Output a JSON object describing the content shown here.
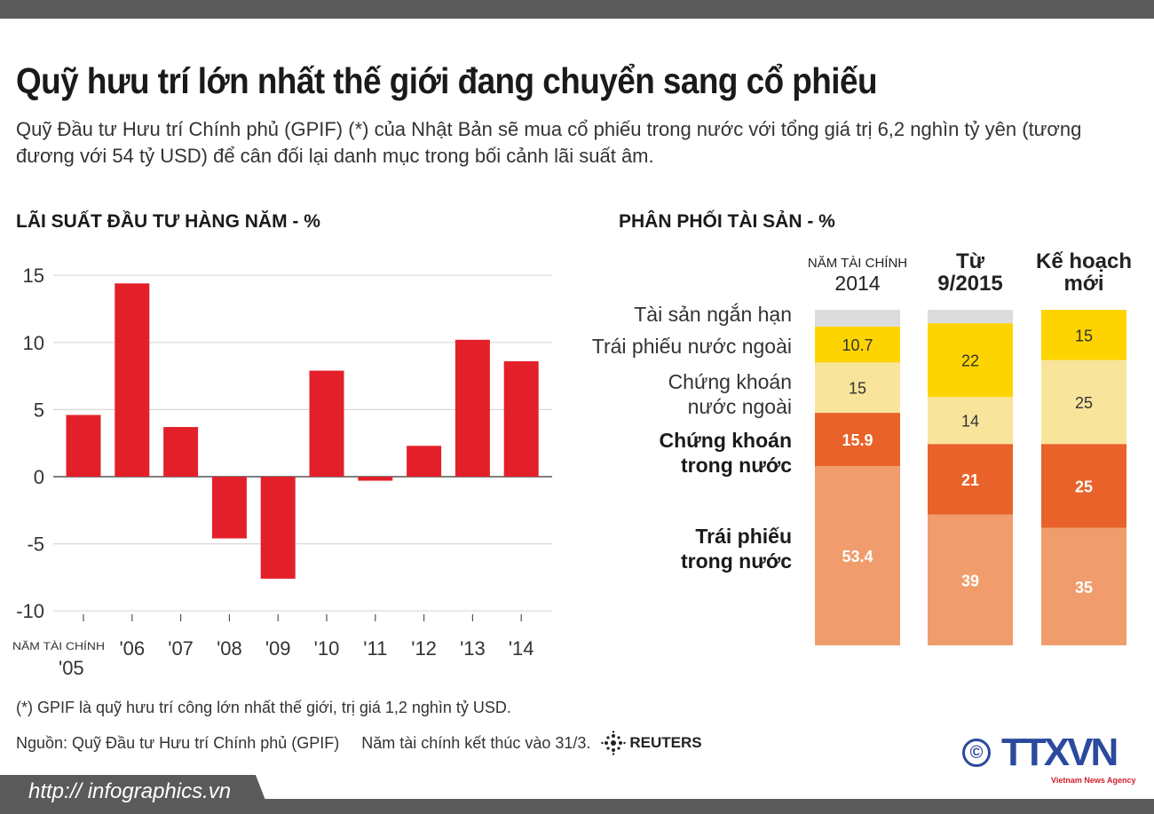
{
  "title": "Quỹ hưu trí lớn nhất thế giới đang chuyển sang cổ phiếu",
  "subtitle": "Quỹ Đầu tư Hưu trí Chính phủ (GPIF) (*) của Nhật Bản sẽ mua cổ phiếu trong nước với tổng giá trị 6,2 nghìn tỷ yên (tương đương với 54 tỷ USD) để cân đối lại danh mục trong bối cảnh lãi suất âm.",
  "colors": {
    "bar": "#e3202a",
    "short_term": "#dcdcdc",
    "foreign_bonds": "#fdd400",
    "foreign_stocks": "#f9e49b",
    "domestic_stocks": "#e8622a",
    "domestic_bonds": "#f09c6c",
    "band": "#5a5a5a"
  },
  "chart_data": [
    {
      "type": "bar",
      "title": "LÃI SUẤT ĐẦU TƯ HÀNG NĂM -  %",
      "x_prefix": "NĂM TÀI CHÍNH",
      "categories": [
        "'05",
        "'06",
        "'07",
        "'08",
        "'09",
        "'10",
        "'11",
        "'12",
        "'13",
        "'14"
      ],
      "values": [
        4.6,
        14.4,
        3.7,
        -4.6,
        -7.6,
        7.9,
        -0.3,
        2.3,
        10.2,
        8.6
      ],
      "yticks": [
        "15",
        "10",
        "5",
        "0",
        "-5",
        "-10"
      ],
      "ylim": [
        -10,
        15
      ],
      "grid": true
    },
    {
      "type": "bar",
      "stacked": true,
      "title": "PHÂN PHỐI TÀI SẢN - %",
      "columns": [
        {
          "top": "NĂM TÀI CHÍNH",
          "bottom": "2014"
        },
        {
          "top": "Từ",
          "bottom": "9/2015"
        },
        {
          "top": "Kế hoạch",
          "bottom": "mới"
        }
      ],
      "series": [
        {
          "name": "Trái phiếu trong nước",
          "label_lines": [
            "Trái phiếu",
            "trong nước"
          ],
          "values": [
            53.4,
            39,
            35
          ],
          "labels": [
            "53.4",
            "39",
            "35"
          ],
          "color_key": "domestic_bonds",
          "text_color": "#ffffff",
          "bold": true
        },
        {
          "name": "Chứng khoán trong nước",
          "label_lines": [
            "Chứng khoán",
            "trong nước"
          ],
          "values": [
            15.9,
            21,
            25
          ],
          "labels": [
            "15.9",
            "21",
            "25"
          ],
          "color_key": "domestic_stocks",
          "text_color": "#ffffff",
          "bold": true
        },
        {
          "name": "Chứng khoán nước ngoài",
          "label_lines": [
            "Chứng khoán",
            "nước ngoài"
          ],
          "values": [
            15,
            14,
            25
          ],
          "labels": [
            "15",
            "14",
            "25"
          ],
          "color_key": "foreign_stocks",
          "text_color": "#333333",
          "bold": false
        },
        {
          "name": "Trái phiếu nước ngoài",
          "label_lines": [
            "Trái phiếu nước ngoài"
          ],
          "values": [
            10.7,
            22,
            15
          ],
          "labels": [
            "10.7",
            "22",
            "15"
          ],
          "color_key": "foreign_bonds",
          "text_color": "#333333",
          "bold": false
        },
        {
          "name": "Tài sản ngắn hạn",
          "label_lines": [
            "Tài sản ngắn hạn"
          ],
          "values": [
            5.0,
            4,
            0
          ],
          "labels": [
            "",
            "",
            ""
          ],
          "color_key": "short_term",
          "text_color": "#333333",
          "bold": false
        }
      ]
    }
  ],
  "footnote": "(*) GPIF là quỹ hưu trí công lớn nhất thế giới, trị giá 1,2 nghìn tỷ USD.",
  "source": "Nguồn: Quỹ Đầu tư Hưu trí Chính phủ (GPIF)     Năm tài chính kết thúc vào 31/3.",
  "reuters": "REUTERS",
  "ttxvn": {
    "logo": "TTXVN",
    "tagline": "Vietnam News Agency",
    "copyright": "©"
  },
  "url": "http:// infographics.vn"
}
